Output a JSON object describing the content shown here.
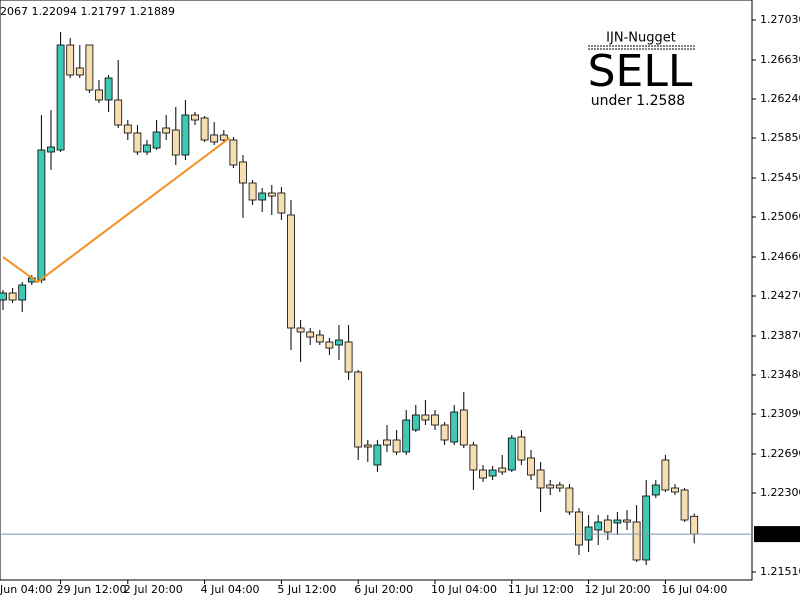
{
  "chart_data": {
    "type": "candlestick",
    "header_text": "2067 1.22094 1.21797 1.21889",
    "x_edge_label": "Jun 04:00",
    "categories": [
      null,
      null,
      null,
      null,
      null,
      null,
      "29 Jun 12:00",
      null,
      null,
      null,
      null,
      null,
      null,
      "2 Jul 20:00",
      null,
      null,
      null,
      null,
      null,
      null,
      null,
      "4 Jul 04:00",
      null,
      null,
      null,
      null,
      null,
      null,
      null,
      "5 Jul 12:00",
      null,
      null,
      null,
      null,
      null,
      null,
      null,
      "6 Jul 20:00",
      null,
      null,
      null,
      null,
      null,
      null,
      null,
      "10 Jul 04:00",
      null,
      null,
      null,
      null,
      null,
      null,
      null,
      "11 Jul 12:00",
      null,
      null,
      null,
      null,
      null,
      null,
      null,
      "12 Jul 20:00",
      null,
      null,
      null,
      null,
      null,
      null,
      null,
      "16 Jul 04:00",
      null,
      null,
      null
    ],
    "open": [
      1.2423,
      1.243,
      1.2423,
      1.2441,
      1.2443,
      1.2571,
      1.2573,
      1.2678,
      1.2655,
      1.2678,
      1.2633,
      1.2623,
      1.2623,
      1.2598,
      1.259,
      1.2571,
      1.2575,
      1.2595,
      1.2593,
      1.2568,
      1.2608,
      1.2605,
      1.2588,
      1.2588,
      1.2583,
      1.2561,
      1.254,
      1.2523,
      1.253,
      1.253,
      1.2508,
      1.2395,
      1.2391,
      1.2388,
      1.2381,
      1.2378,
      1.2381,
      1.2351,
      1.2278,
      1.2258,
      1.2283,
      1.2283,
      1.2271,
      1.2293,
      1.2308,
      1.2308,
      1.2298,
      1.2281,
      1.2313,
      1.2278,
      1.2253,
      1.2247,
      1.2255,
      1.2253,
      1.2286,
      1.2265,
      1.2253,
      1.2238,
      1.2238,
      1.2235,
      1.2211,
      1.2183,
      1.2193,
      1.2203,
      1.22,
      1.2203,
      1.2201,
      1.2163,
      1.2228,
      1.2263,
      1.2235,
      1.2233,
      1.22067
    ],
    "high": [
      1.2433,
      1.2435,
      1.2441,
      1.2448,
      1.2608,
      1.2613,
      1.2691,
      1.2685,
      1.2678,
      1.2678,
      1.2643,
      1.2648,
      1.2663,
      1.2603,
      1.2598,
      1.2583,
      1.2603,
      1.2608,
      1.2616,
      1.2623,
      1.2611,
      1.2607,
      1.2601,
      1.2593,
      1.2586,
      1.2568,
      1.2543,
      1.2535,
      1.2538,
      1.2536,
      1.2523,
      1.2403,
      1.2395,
      1.2393,
      1.2385,
      1.2398,
      1.2398,
      1.2353,
      1.2283,
      1.2283,
      1.2298,
      1.2293,
      1.2313,
      1.2318,
      1.2323,
      1.2313,
      1.2301,
      1.2318,
      1.2331,
      1.2281,
      1.2258,
      1.2257,
      1.2268,
      1.2288,
      1.2293,
      1.2273,
      1.2261,
      1.2243,
      1.2241,
      1.2239,
      1.2215,
      1.2208,
      1.2208,
      1.2208,
      1.2211,
      1.2213,
      1.2218,
      1.2243,
      1.2243,
      1.2268,
      1.2239,
      1.2235,
      1.22094
    ],
    "low": [
      1.2413,
      1.242,
      1.2411,
      1.2438,
      1.244,
      1.2553,
      1.2571,
      1.2645,
      1.2645,
      1.263,
      1.262,
      1.2611,
      1.2595,
      1.2583,
      1.2568,
      1.2568,
      1.2573,
      1.2583,
      1.2558,
      1.2563,
      1.2598,
      1.2581,
      1.2578,
      1.2581,
      1.2555,
      1.2505,
      1.2518,
      1.2511,
      1.2508,
      1.2503,
      1.2373,
      1.2361,
      1.2378,
      1.2378,
      1.2368,
      1.2363,
      1.2343,
      1.2263,
      1.2261,
      1.2251,
      1.2271,
      1.2268,
      1.2268,
      1.2291,
      1.2298,
      1.2293,
      1.2278,
      1.2278,
      1.2275,
      1.2233,
      1.2241,
      1.2243,
      1.2248,
      1.2251,
      1.2258,
      1.2243,
      1.2211,
      1.2228,
      1.2231,
      1.2208,
      1.2168,
      1.2171,
      1.2178,
      1.2183,
      1.2188,
      1.2193,
      1.2161,
      1.2158,
      1.2225,
      1.2231,
      1.2228,
      1.2201,
      1.21797
    ],
    "close": [
      1.243,
      1.2423,
      1.2438,
      1.2445,
      1.2573,
      1.2576,
      1.2678,
      1.2648,
      1.2648,
      1.2633,
      1.2623,
      1.2645,
      1.2598,
      1.259,
      1.2571,
      1.2578,
      1.2591,
      1.259,
      1.2568,
      1.2608,
      1.2603,
      1.2583,
      1.2581,
      1.2583,
      1.2558,
      1.254,
      1.2523,
      1.253,
      1.2527,
      1.251,
      1.2395,
      1.2391,
      1.2386,
      1.2381,
      1.2375,
      1.2383,
      1.2351,
      1.2276,
      1.2276,
      1.2278,
      1.2278,
      1.2271,
      1.2303,
      1.2308,
      1.2303,
      1.2298,
      1.2283,
      1.2311,
      1.2278,
      1.2253,
      1.2245,
      1.2253,
      1.2251,
      1.2285,
      1.2263,
      1.2248,
      1.2235,
      1.2235,
      1.2235,
      1.2211,
      1.2178,
      1.2196,
      1.2201,
      1.2191,
      1.2203,
      1.2201,
      1.2163,
      1.2227,
      1.2238,
      1.2233,
      1.2231,
      1.2203,
      1.21889
    ],
    "up_color": "#40c8b4",
    "down_color": "#f5deb3",
    "zigzag": {
      "x": [
        0,
        3.6,
        23.6
      ],
      "values": [
        1.2466,
        1.2441,
        1.2585
      ],
      "color": "#f0901e"
    },
    "current_price": 1.21889,
    "current_price_color": "#7d93ab",
    "ylim": [
      1.2143,
      1.2719
    ],
    "yticks": [
      {
        "value": 1.2703,
        "label": "1.27030"
      },
      {
        "value": 1.2663,
        "label": "1.26630"
      },
      {
        "value": 1.2624,
        "label": "1.26240"
      },
      {
        "value": 1.2585,
        "label": "1.25850"
      },
      {
        "value": 1.2545,
        "label": "1.25450"
      },
      {
        "value": 1.2506,
        "label": "1.25060"
      },
      {
        "value": 1.2466,
        "label": "1.24660"
      },
      {
        "value": 1.2427,
        "label": "1.24270"
      },
      {
        "value": 1.2387,
        "label": "1.23870"
      },
      {
        "value": 1.2348,
        "label": "1.23480"
      },
      {
        "value": 1.2309,
        "label": "1.23090"
      },
      {
        "value": 1.2269,
        "label": "1.22690"
      },
      {
        "value": 1.223,
        "label": "1.22300"
      },
      {
        "value": 1.2151,
        "label": "1.21510"
      }
    ],
    "annotation": {
      "name": "IJN-Nugget",
      "signal": "SELL",
      "detail": "under 1.2588",
      "signal_color": "#f05014",
      "detail_color": "#f07020"
    }
  }
}
